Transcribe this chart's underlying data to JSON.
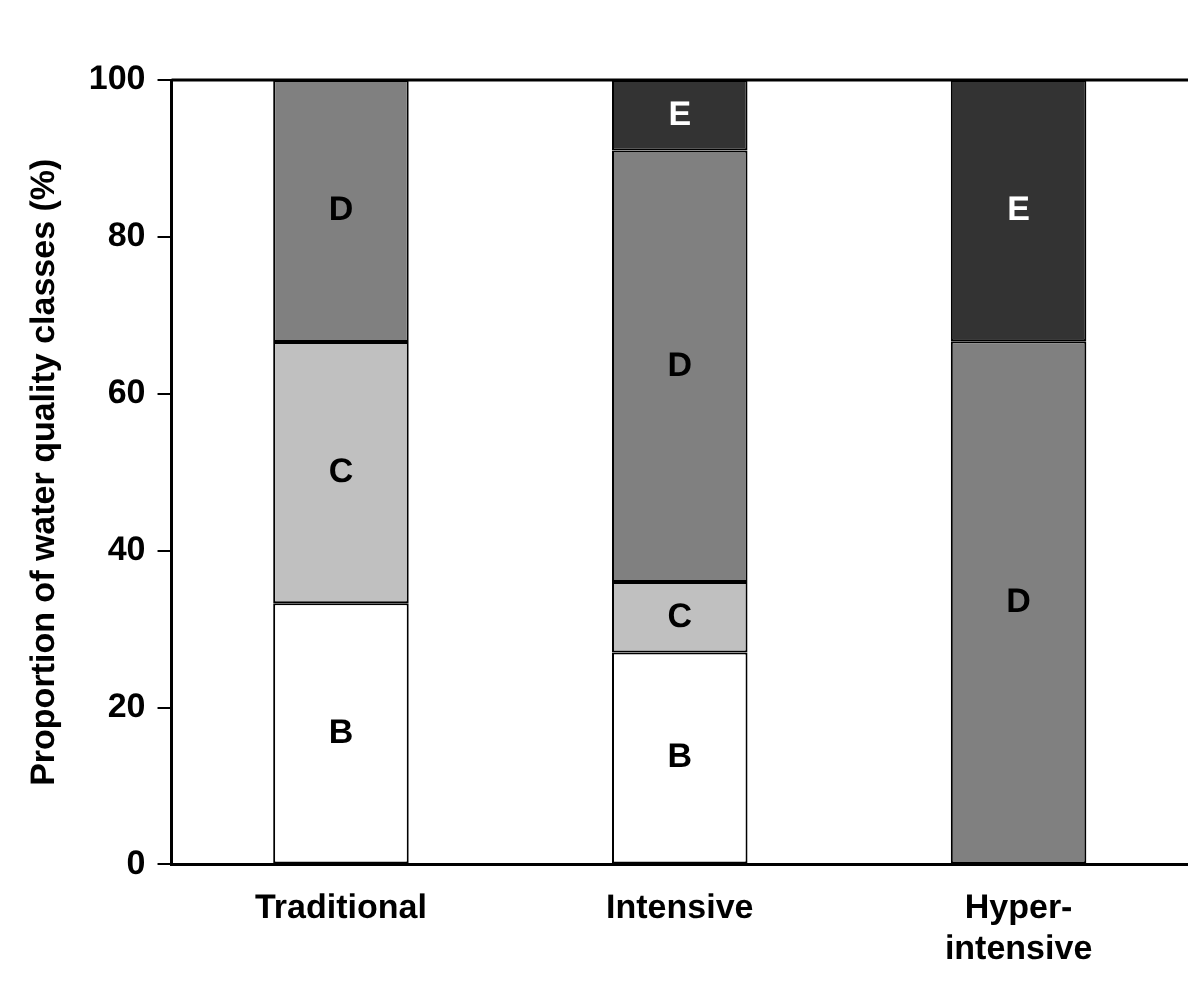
{
  "chart_data": {
    "type": "bar",
    "stacked": true,
    "ylabel": "Proportion of water quality classes (%)",
    "categories": [
      "Traditional",
      "Intensive",
      "Hyper-\nintensive"
    ],
    "series": [
      {
        "name": "B",
        "color": "#ffffff",
        "values": [
          33.3,
          27,
          null
        ]
      },
      {
        "name": "C",
        "color": "#c0c0c0",
        "values": [
          33.3,
          9,
          null
        ]
      },
      {
        "name": "D",
        "color": "#808080",
        "values": [
          33.4,
          55,
          66.7
        ]
      },
      {
        "name": "E",
        "color": "#333333",
        "values": [
          null,
          9,
          33.3
        ]
      }
    ],
    "ylim": [
      0,
      100
    ],
    "yticks": [
      0,
      20,
      40,
      60,
      80,
      100
    ],
    "grid": false,
    "legend": false
  }
}
